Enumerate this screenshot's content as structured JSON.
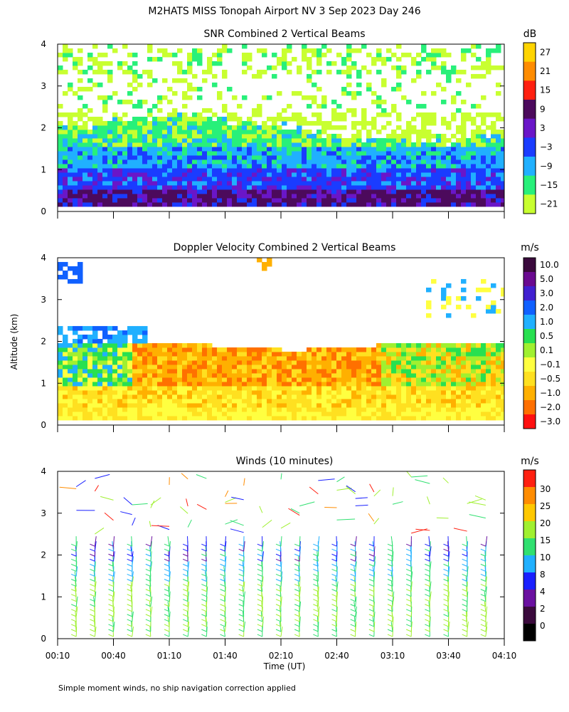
{
  "title": "M2HATS MISS Tonopah Airport NV   3 Sep 2023 Day 246",
  "footnote": "Simple moment winds, no ship navigation correction applied",
  "y_axis_label": "Altitude (km)",
  "x_axis_label": "Time (UT)",
  "time_ticks": [
    "00:10",
    "00:40",
    "01:10",
    "01:40",
    "02:10",
    "02:40",
    "03:10",
    "03:40",
    "04:10"
  ],
  "altitude_ticks": [
    "0",
    "1",
    "2",
    "3",
    "4"
  ],
  "chart_data": [
    {
      "type": "heatmap",
      "title": "SNR Combined 2 Vertical Beams",
      "xlabel": "",
      "ylabel": "Altitude (km)",
      "xlim": [
        "00:10",
        "04:10"
      ],
      "ylim": [
        0,
        4
      ],
      "colorbar": {
        "unit": "dB",
        "labels": [
          "27",
          "21",
          "15",
          "9",
          "3",
          "−3",
          "−9",
          "−15",
          "−21"
        ],
        "colors": [
          "#ffd400",
          "#ff8c00",
          "#ff2010",
          "#4c0a5c",
          "#6a16c8",
          "#1a3cff",
          "#20b0ff",
          "#28f07a",
          "#c8ff30"
        ]
      },
      "layers_km": [
        {
          "band": "0.1-0.5",
          "snr_db": 9
        },
        {
          "band": "0.5-1.0",
          "snr_db": 0
        },
        {
          "band": "1.0-1.5",
          "snr_db": -9
        },
        {
          "band": "1.5-1.9",
          "snr_db": -15
        },
        {
          "band": "1.9-2.3",
          "snr_db": -21
        },
        {
          "band": "2.3-4.0",
          "snr_db": -18
        }
      ]
    },
    {
      "type": "heatmap",
      "title": "Doppler Velocity Combined 2 Vertical Beams",
      "xlabel": "",
      "ylabel": "Altitude (km)",
      "xlim": [
        "00:10",
        "04:10"
      ],
      "ylim": [
        0,
        4
      ],
      "colorbar": {
        "unit": "m/s",
        "labels": [
          "10.0",
          "5.0",
          "3.0",
          "2.0",
          "1.0",
          "0.5",
          "0.1",
          "−0.1",
          "−0.5",
          "−1.0",
          "−2.0",
          "−3.0"
        ],
        "colors": [
          "#3a0a3c",
          "#6a0a90",
          "#4020d0",
          "#1060ff",
          "#20b0ff",
          "#28e050",
          "#a0f030",
          "#ffff40",
          "#ffe020",
          "#ffb000",
          "#ff7000",
          "#ff1010"
        ]
      },
      "layers_km": [
        {
          "band": "0.1-0.5",
          "velocity_ms": -0.1
        },
        {
          "band": "0.5-1.0",
          "velocity_ms": -0.5
        },
        {
          "band": "1.0-1.9",
          "velocity_ms": -1.0
        },
        {
          "band": "1.9-4.0",
          "velocity_ms": 1.0
        }
      ]
    },
    {
      "type": "scatter",
      "title": "Winds (10 minutes)",
      "xlabel": "Time (UT)",
      "ylabel": "Altitude (km)",
      "xlim": [
        "00:10",
        "04:10"
      ],
      "ylim": [
        0,
        4
      ],
      "markers": "wind barbs",
      "profile_times": [
        "00:20",
        "00:30",
        "00:40",
        "00:50",
        "01:00",
        "01:10",
        "01:20",
        "01:30",
        "01:40",
        "01:50",
        "02:00",
        "02:10",
        "02:20",
        "02:30",
        "02:40",
        "02:50",
        "03:00",
        "03:10",
        "03:20",
        "03:30",
        "03:40",
        "03:50",
        "04:00"
      ],
      "colorbar": {
        "unit": "m/s",
        "labels": [
          "30",
          "25",
          "20",
          "15",
          "10",
          "8",
          "4",
          "2",
          "0"
        ],
        "colors": [
          "#ff2010",
          "#ff8c00",
          "#ffc800",
          "#a0f030",
          "#30e070",
          "#20b0ff",
          "#1a20ff",
          "#6a10a0",
          "#3a0a3c",
          "#000000"
        ]
      }
    }
  ]
}
